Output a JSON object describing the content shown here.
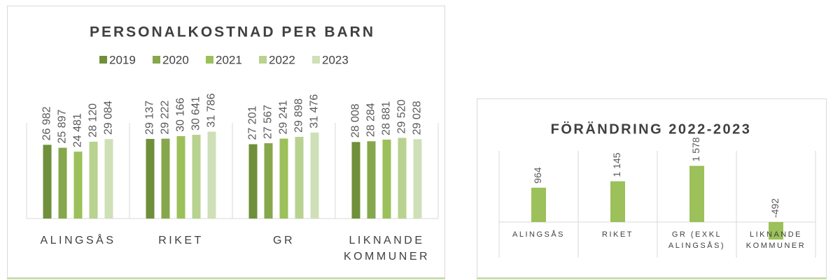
{
  "chart_data": [
    {
      "type": "bar",
      "title": "PERSONALKOSTNAD PER BARN",
      "categories": [
        "ALINGSÅS",
        "RIKET",
        "GR",
        "LIKNANDE KOMMUNER"
      ],
      "ylim": [
        0,
        35000
      ],
      "series": [
        {
          "name": "2019",
          "color": "#6f8f3b",
          "values": [
            26982,
            29137,
            27201,
            28008
          ],
          "value_labels": [
            "26 982",
            "29 137",
            "27 201",
            "28 008"
          ]
        },
        {
          "name": "2020",
          "color": "#86a74b",
          "values": [
            25897,
            29222,
            27567,
            28284
          ],
          "value_labels": [
            "25 897",
            "29 222",
            "27 567",
            "28 284"
          ]
        },
        {
          "name": "2021",
          "color": "#9cc05a",
          "values": [
            24481,
            30166,
            29241,
            28881
          ],
          "value_labels": [
            "24 481",
            "30 166",
            "29 241",
            "28 881"
          ]
        },
        {
          "name": "2022",
          "color": "#b8d28f",
          "values": [
            28120,
            30641,
            29898,
            29520
          ],
          "value_labels": [
            "28 120",
            "30 641",
            "29 898",
            "29 520"
          ]
        },
        {
          "name": "2023",
          "color": "#cfe0b8",
          "values": [
            29084,
            31786,
            31476,
            29028
          ],
          "value_labels": [
            "29 084",
            "31 786",
            "31 476",
            "29 028"
          ]
        }
      ]
    },
    {
      "type": "bar",
      "title": "FÖRÄNDRING 2022-2023",
      "categories": [
        "ALINGSÅS",
        "RIKET",
        "GR (EXKL ALINGSÅS)",
        "LIKNANDE KOMMUNER"
      ],
      "ylim": [
        -1000,
        2000
      ],
      "color": "#9cc05a",
      "values": [
        964,
        1145,
        1578,
        -492
      ],
      "value_labels": [
        "964",
        "1 145",
        "1 578",
        "-492"
      ]
    }
  ]
}
